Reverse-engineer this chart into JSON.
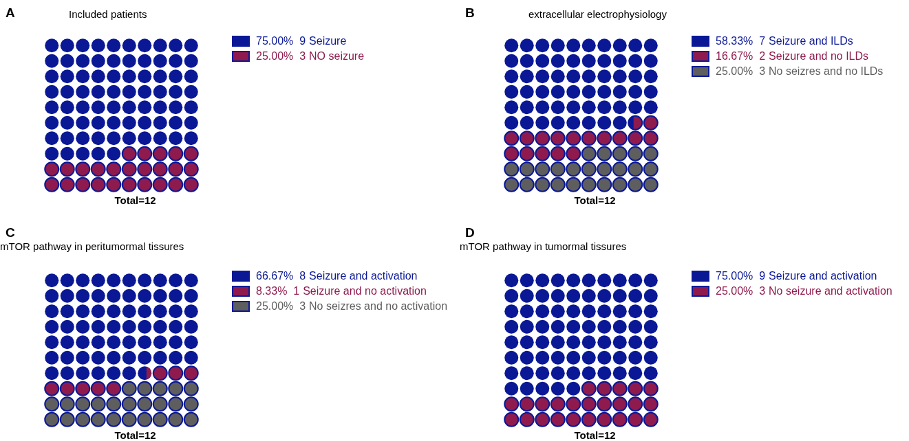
{
  "chart_data": [
    {
      "type": "other",
      "title": "Included patients",
      "annotations": [
        "A",
        "Total=12"
      ],
      "categories": [
        "Seizure",
        "NO seizure"
      ],
      "values": [
        75,
        25
      ],
      "value_labels": [
        "75.00%  9",
        "25.00%  3"
      ],
      "colors": [
        "#0a1896",
        "#8e1a4e"
      ]
    },
    {
      "type": "other",
      "title": "extracellular electrophysiology",
      "annotations": [
        "B",
        "Total=12"
      ],
      "categories": [
        "Seizure and ILDs",
        "Seizure and no ILDs",
        "No seizres and no ILDs"
      ],
      "values": [
        58.33,
        16.67,
        25
      ],
      "value_labels": [
        "58.33%  7",
        "16.67%  2",
        "25.00%  3"
      ],
      "colors": [
        "#0a1896",
        "#8e1a4e",
        "#5e5e5e"
      ]
    },
    {
      "type": "other",
      "title": "mTOR pathway in peritumormal tissures",
      "annotations": [
        "C",
        "Total=12"
      ],
      "categories": [
        "Seizure and activation",
        "Seizure and no activation",
        "No seizres and no activation"
      ],
      "values": [
        66.67,
        8.33,
        25
      ],
      "value_labels": [
        "66.67%  8",
        "8.33%  1",
        "25.00%  3"
      ],
      "colors": [
        "#0a1896",
        "#8e1a4e",
        "#5e5e5e"
      ]
    },
    {
      "type": "other",
      "title": "mTOR pathway in tumormal tissures",
      "annotations": [
        "D",
        "Total=12"
      ],
      "categories": [
        "Seizure and activation",
        "No seizure and activation"
      ],
      "values": [
        75,
        25
      ],
      "value_labels": [
        "75.00%  9",
        "25.00%  3"
      ],
      "colors": [
        "#0a1896",
        "#8e1a4e"
      ]
    }
  ]
}
